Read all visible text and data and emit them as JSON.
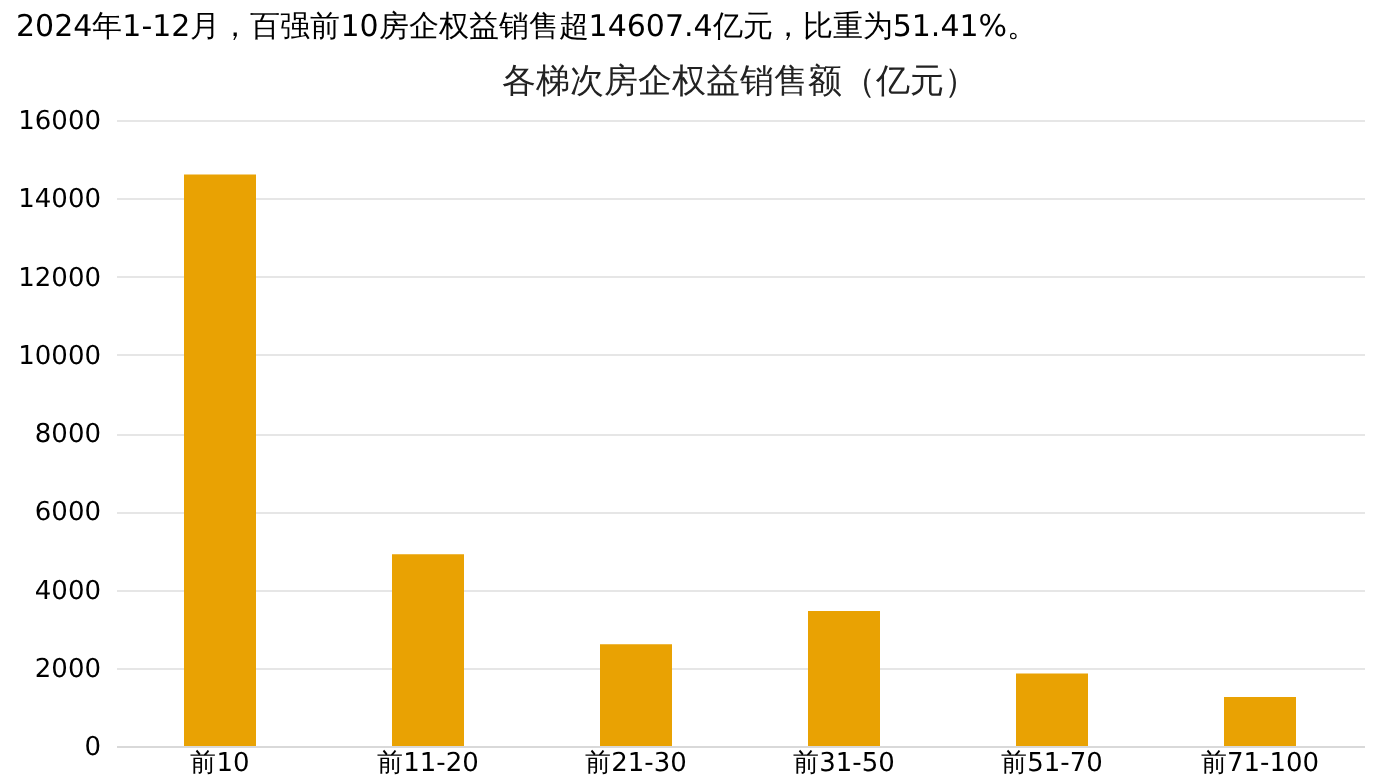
{
  "chart_data": {
    "type": "bar",
    "title": "各梯次房企权益销售额（亿元）",
    "annotations": [
      "2024年1-12月，百强前10房企权益销售超14607.4亿元，比重为51.41%。"
    ],
    "categories": [
      "前10",
      "前11-20",
      "前21-30",
      "前31-50",
      "前51-70",
      "前71-100"
    ],
    "values": [
      14607.4,
      4900,
      2600,
      3450,
      1850,
      1250
    ],
    "color": "#e9a203",
    "ylim": [
      0,
      16000
    ],
    "yticks": [
      0,
      2000,
      4000,
      6000,
      8000,
      10000,
      12000,
      14000,
      16000
    ],
    "grid": "y"
  }
}
